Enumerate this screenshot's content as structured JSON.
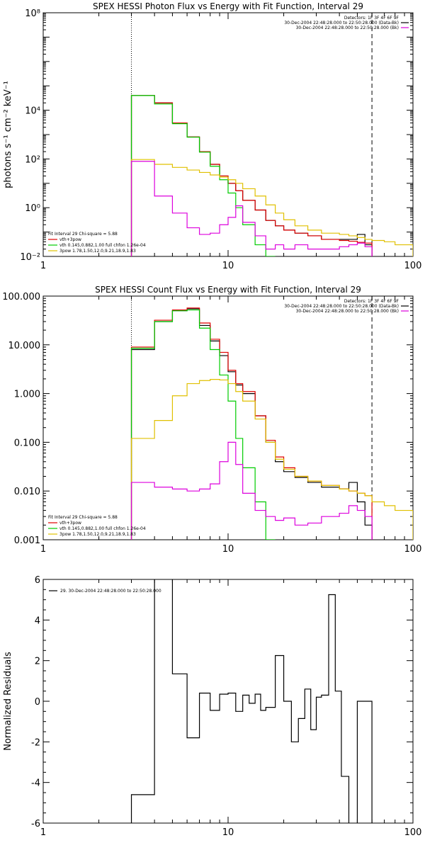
{
  "chart_data": [
    {
      "type": "line",
      "title": "SPEX HESSI Photon Flux vs Energy with Fit Function, Interval 29",
      "xlabel": "",
      "ylabel": "photons s⁻¹ cm⁻² keV⁻¹",
      "xscale": "log",
      "yscale": "log",
      "xlim": [
        1,
        100
      ],
      "ylim": [
        0.01,
        100000000
      ],
      "x_ticks": [
        1,
        10,
        100
      ],
      "x_tick_labels": [
        "1",
        "10",
        "100"
      ],
      "y_ticks": [
        0.01,
        1,
        100,
        10000,
        100000000
      ],
      "y_tick_labels": [
        "10⁻²",
        "10⁰",
        "10²",
        "10⁴",
        "10⁸"
      ],
      "vlines": [
        {
          "x": 3,
          "style": "dotted"
        },
        {
          "x": 60,
          "style": "dashed"
        }
      ],
      "header": [
        "Detectors: 1F 3F 4F 6F 9F",
        "30-Dec-2004 22:48:28.000 to 22:50:28.000 (Data-Bk)",
        "30-Dec-2004 22:48:28.000 to 22:50:28.000 (Bk)"
      ],
      "annotations": [
        "Fit Interval 29   Chi-square = 5.88",
        "vth+3pow",
        "vth 0.145,0.882,1.00  full chfon 1.26e-04",
        "3pow 1.78,1.50,12.0,9.21,18.9,1.83"
      ],
      "series": [
        {
          "name": "Data-Bk",
          "color": "#000000",
          "bins": [
            3,
            4,
            5,
            6,
            7,
            8,
            9,
            10,
            11,
            12,
            14,
            16,
            18,
            20,
            23,
            27,
            32,
            40,
            45,
            50,
            55,
            60
          ],
          "values": [
            40000,
            20000,
            3000,
            800,
            200,
            60,
            20,
            10,
            5,
            2,
            0.8,
            0.3,
            0.18,
            0.12,
            0.09,
            0.07,
            0.05,
            0.05,
            0.05,
            0.08,
            0.03
          ]
        },
        {
          "name": "vth+3pow",
          "color": "#e00000",
          "bins": [
            3,
            4,
            5,
            6,
            7,
            8,
            9,
            10,
            11,
            12,
            14,
            16,
            18,
            20,
            23,
            27,
            32,
            40,
            45,
            50,
            55,
            60
          ],
          "values": [
            40000,
            20000,
            3000,
            800,
            200,
            60,
            20,
            10,
            5,
            2,
            0.8,
            0.3,
            0.18,
            0.12,
            0.09,
            0.07,
            0.05,
            0.045,
            0.042,
            0.038,
            0.035
          ]
        },
        {
          "name": "vth",
          "color": "#00cc00",
          "bins": [
            3,
            4,
            5,
            6,
            7,
            8,
            9,
            10,
            11,
            12,
            14,
            16,
            18
          ],
          "values": [
            40000,
            18000,
            2800,
            780,
            190,
            50,
            14,
            4,
            1,
            0.2,
            0.03,
            0.01
          ]
        },
        {
          "name": "3pow",
          "color": "#e0c000",
          "bins": [
            3,
            4,
            5,
            6,
            7,
            8,
            9,
            10,
            11,
            12,
            14,
            16,
            18,
            20,
            23,
            27,
            32,
            40,
            45,
            50,
            55,
            60,
            70,
            80,
            100
          ],
          "values": [
            95,
            60,
            45,
            35,
            28,
            22,
            18,
            14,
            10,
            6,
            3,
            1.3,
            0.6,
            0.32,
            0.18,
            0.12,
            0.09,
            0.08,
            0.07,
            0.06,
            0.05,
            0.045,
            0.04,
            0.03
          ]
        },
        {
          "name": "Bk",
          "color": "#dd00dd",
          "bins": [
            3,
            4,
            5,
            6,
            7,
            8,
            9,
            10,
            11,
            12,
            14,
            16,
            18,
            20,
            23,
            27,
            32,
            40,
            45,
            50,
            55,
            60
          ],
          "values": [
            80,
            3,
            0.6,
            0.15,
            0.08,
            0.09,
            0.2,
            0.4,
            1.2,
            0.25,
            0.07,
            0.02,
            0.03,
            0.02,
            0.03,
            0.02,
            0.02,
            0.025,
            0.03,
            0.035,
            0.025
          ]
        }
      ]
    },
    {
      "type": "line",
      "title": "SPEX HESSI Count Flux vs Energy with Fit Function, Interval 29",
      "xlabel": "",
      "ylabel": "",
      "xscale": "log",
      "yscale": "log",
      "xlim": [
        1,
        100
      ],
      "ylim": [
        0.001,
        100
      ],
      "x_ticks": [
        1,
        10,
        100
      ],
      "x_tick_labels": [
        "1",
        "10",
        "100"
      ],
      "y_ticks": [
        0.001,
        0.01,
        0.1,
        1,
        10,
        100
      ],
      "y_tick_labels": [
        "0.001",
        "0.010",
        "0.100",
        "1.000",
        "10.000",
        "100.000"
      ],
      "vlines": [
        {
          "x": 3,
          "style": "dotted"
        },
        {
          "x": 60,
          "style": "dashed"
        }
      ],
      "header": [
        "Detectors: 1F 3F 4F 6F 9F",
        "30-Dec-2004 22:48:28.000 to 22:50:28.000 (Data-Bk)",
        "30-Dec-2004 22:48:28.000 to 22:50:28.000 (Bk)"
      ],
      "annotations": [
        "Fit Interval 29   Chi-square = 5.88",
        "vth+3pow",
        "vth 0.145,0.882,1.00  full chfon 1.26e-04",
        "3pow 1.78,1.50,12.0,9.21,18.9,1.83"
      ],
      "series": [
        {
          "name": "Data-Bk",
          "color": "#000000",
          "bins": [
            3,
            4,
            5,
            6,
            7,
            8,
            9,
            10,
            11,
            12,
            14,
            16,
            18,
            20,
            23,
            27,
            32,
            40,
            45,
            50,
            55,
            60
          ],
          "values": [
            8,
            30,
            50,
            55,
            25,
            12,
            6,
            2.8,
            1.5,
            1.0,
            0.35,
            0.1,
            0.04,
            0.025,
            0.019,
            0.015,
            0.012,
            0.011,
            0.015,
            0.006,
            0.002
          ]
        },
        {
          "name": "vth+3pow",
          "color": "#e00000",
          "bins": [
            3,
            4,
            5,
            6,
            7,
            8,
            9,
            10,
            11,
            12,
            14,
            16,
            18,
            20,
            23,
            27,
            32,
            40,
            45,
            50,
            55,
            60
          ],
          "values": [
            9,
            32,
            52,
            57,
            28,
            13,
            7,
            3,
            1.6,
            1.1,
            0.35,
            0.11,
            0.05,
            0.03,
            0.02,
            0.016,
            0.013,
            0.011,
            0.01,
            0.009,
            0.008
          ]
        },
        {
          "name": "vth",
          "color": "#00cc00",
          "bins": [
            3,
            4,
            5,
            6,
            7,
            8,
            9,
            10,
            11,
            12,
            14,
            16,
            18
          ],
          "values": [
            8.5,
            30,
            50,
            52,
            22,
            8,
            2.4,
            0.7,
            0.12,
            0.03,
            0.006,
            0.001
          ]
        },
        {
          "name": "3pow",
          "color": "#e0c000",
          "bins": [
            3,
            4,
            5,
            6,
            7,
            8,
            9,
            10,
            11,
            12,
            14,
            16,
            18,
            20,
            23,
            27,
            32,
            40,
            45,
            50,
            55,
            60,
            70,
            80,
            100
          ],
          "values": [
            0.12,
            0.28,
            0.9,
            1.6,
            1.85,
            1.95,
            1.9,
            1.6,
            1.1,
            0.7,
            0.3,
            0.1,
            0.045,
            0.028,
            0.02,
            0.016,
            0.013,
            0.011,
            0.01,
            0.009,
            0.008,
            0.006,
            0.005,
            0.004
          ]
        },
        {
          "name": "Bk",
          "color": "#dd00dd",
          "bins": [
            3,
            4,
            5,
            6,
            7,
            8,
            9,
            10,
            11,
            12,
            14,
            16,
            18,
            20,
            23,
            27,
            32,
            40,
            45,
            50,
            55,
            60
          ],
          "values": [
            0.015,
            0.012,
            0.011,
            0.01,
            0.011,
            0.014,
            0.04,
            0.1,
            0.035,
            0.009,
            0.004,
            0.003,
            0.0025,
            0.0028,
            0.002,
            0.0022,
            0.003,
            0.0035,
            0.005,
            0.004,
            0.003
          ]
        }
      ]
    },
    {
      "type": "line",
      "title": "",
      "xlabel": "",
      "ylabel": "Normalized Residuals",
      "xscale": "log",
      "yscale": "linear",
      "xlim": [
        1,
        100
      ],
      "ylim": [
        -6,
        6
      ],
      "x_ticks": [
        1,
        10,
        100
      ],
      "x_tick_labels": [
        "1",
        "10",
        "100"
      ],
      "y_ticks": [
        -6,
        -4,
        -2,
        0,
        2,
        4,
        6
      ],
      "y_tick_labels": [
        "-6",
        "-4",
        "-2",
        "0",
        "2",
        "4",
        "6"
      ],
      "legend": "29. 30-Dec-2004 22:48:28.000 to 22:50:28.000",
      "series": [
        {
          "name": "",
          "color": "#000000",
          "bins": [
            3,
            4,
            5,
            6,
            7,
            8,
            9,
            10,
            11,
            12,
            13,
            14,
            15,
            16,
            18,
            20,
            22,
            24,
            26,
            28,
            30,
            32,
            35,
            38,
            41,
            45,
            50,
            55,
            60
          ],
          "values": [
            -4.6,
            6.2,
            1.35,
            -1.8,
            0.4,
            -0.45,
            0.35,
            0.4,
            -0.5,
            0.3,
            -0.1,
            0.35,
            -0.45,
            -0.3,
            2.25,
            0.0,
            -2.0,
            -0.85,
            0.6,
            -1.4,
            0.2,
            0.3,
            5.25,
            0.5,
            -3.7,
            -6.5,
            0,
            0
          ]
        }
      ]
    }
  ]
}
